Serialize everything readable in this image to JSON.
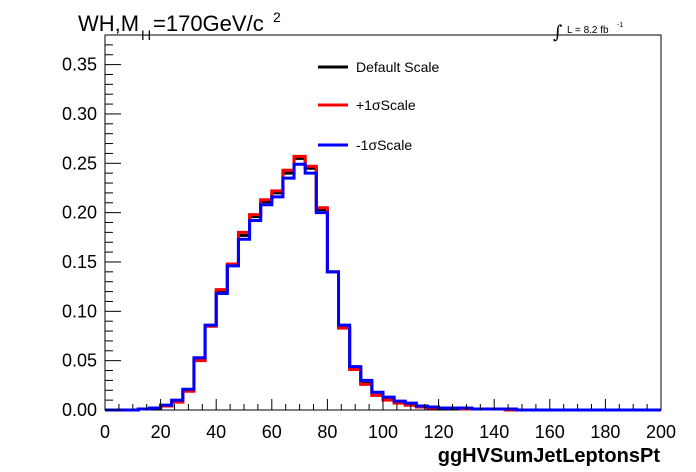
{
  "chart_data": {
    "type": "line",
    "subtype": "step-histogram",
    "title": {
      "main": "WH,M",
      "subscript": "H",
      "rest": "=170GeV/c",
      "superscript": "2"
    },
    "luminosity": {
      "prefix": "L = 8.2 fb",
      "superscript": "-1",
      "symbol": "∫"
    },
    "xlabel": "ggHVSumJetLeptonsPt",
    "ylabel": "",
    "xlim": [
      0,
      200
    ],
    "ylim": [
      0,
      0.38
    ],
    "x_ticks": [
      "0",
      "20",
      "40",
      "60",
      "80",
      "100",
      "120",
      "140",
      "160",
      "180",
      "200"
    ],
    "y_ticks": [
      "0.00",
      "0.05",
      "0.10",
      "0.15",
      "0.20",
      "0.25",
      "0.30",
      "0.35"
    ],
    "y_tick_values": [
      0,
      0.05,
      0.1,
      0.15,
      0.2,
      0.25,
      0.3,
      0.35
    ],
    "grid": false,
    "legend_position": "top-center",
    "bin_edges": [
      0,
      4,
      8,
      12,
      16,
      20,
      24,
      28,
      32,
      36,
      40,
      44,
      48,
      52,
      56,
      60,
      64,
      68,
      72,
      76,
      80,
      84,
      88,
      92,
      96,
      100,
      104,
      108,
      112,
      116,
      120,
      124,
      128,
      132,
      136,
      140,
      144,
      148,
      152,
      156,
      160,
      164,
      168,
      172,
      176,
      180,
      184,
      188,
      192,
      196,
      200
    ],
    "series": [
      {
        "name": "Default Scale",
        "color": "#000000",
        "values": [
          0,
          0,
          0,
          0.001,
          0.002,
          0.004,
          0.009,
          0.02,
          0.051,
          0.085,
          0.12,
          0.147,
          0.177,
          0.196,
          0.211,
          0.22,
          0.24,
          0.255,
          0.245,
          0.203,
          0.14,
          0.084,
          0.042,
          0.027,
          0.015,
          0.011,
          0.008,
          0.005,
          0.003,
          0.002,
          0.002,
          0.002,
          0.001,
          0.001,
          0.001,
          0.001,
          0,
          0,
          0,
          0,
          0,
          0,
          0,
          0,
          0,
          0,
          0,
          0,
          0,
          0
        ]
      },
      {
        "name": "+1σScale",
        "color": "#ff0000",
        "values": [
          0,
          0,
          0,
          0.001,
          0.002,
          0.004,
          0.008,
          0.019,
          0.05,
          0.085,
          0.122,
          0.148,
          0.18,
          0.198,
          0.213,
          0.222,
          0.243,
          0.257,
          0.247,
          0.205,
          0.14,
          0.083,
          0.041,
          0.026,
          0.015,
          0.01,
          0.007,
          0.005,
          0.003,
          0.002,
          0.002,
          0.002,
          0.001,
          0.001,
          0.001,
          0.001,
          0,
          0,
          0,
          0,
          0,
          0,
          0,
          0,
          0,
          0,
          0,
          0,
          0,
          0
        ]
      },
      {
        "name": "-1σScale",
        "color": "#0000ff",
        "values": [
          0,
          0,
          0,
          0.001,
          0.002,
          0.005,
          0.01,
          0.021,
          0.053,
          0.086,
          0.118,
          0.146,
          0.173,
          0.192,
          0.208,
          0.216,
          0.235,
          0.249,
          0.24,
          0.2,
          0.14,
          0.086,
          0.044,
          0.03,
          0.018,
          0.013,
          0.009,
          0.007,
          0.004,
          0.003,
          0.002,
          0.002,
          0.002,
          0.001,
          0.001,
          0.001,
          0.001,
          0,
          0,
          0,
          0,
          0,
          0,
          0,
          0,
          0,
          0,
          0,
          0,
          0
        ]
      }
    ]
  }
}
